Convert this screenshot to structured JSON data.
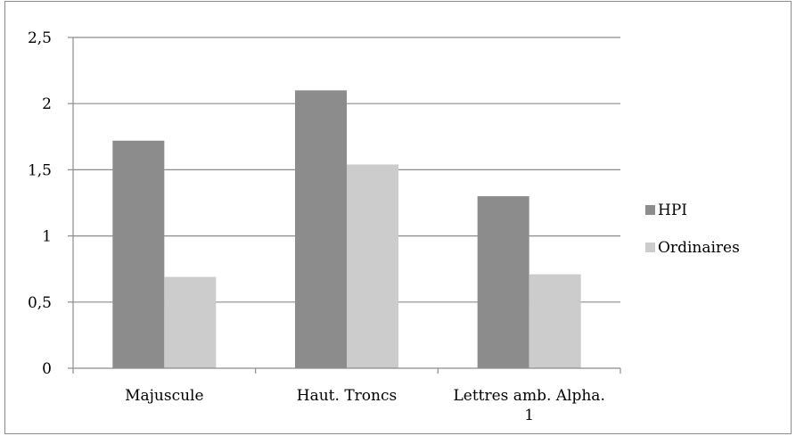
{
  "chart_data": {
    "type": "bar",
    "categories": [
      [
        "Majuscule"
      ],
      [
        "Haut. Troncs"
      ],
      [
        "Lettres amb. Alpha.",
        "1"
      ]
    ],
    "series": [
      {
        "name": "HPI",
        "values": [
          1.72,
          2.1,
          1.3
        ],
        "color": "#8c8c8c"
      },
      {
        "name": "Ordinaires",
        "values": [
          0.69,
          1.54,
          0.71
        ],
        "color": "#cccccc"
      }
    ],
    "ylim": [
      0,
      2.5
    ],
    "yticks": [
      "0",
      "0,5",
      "1",
      "1,5",
      "2",
      "2,5"
    ],
    "grid": true,
    "legend_position": "right",
    "title": "",
    "xlabel": "",
    "ylabel": ""
  }
}
